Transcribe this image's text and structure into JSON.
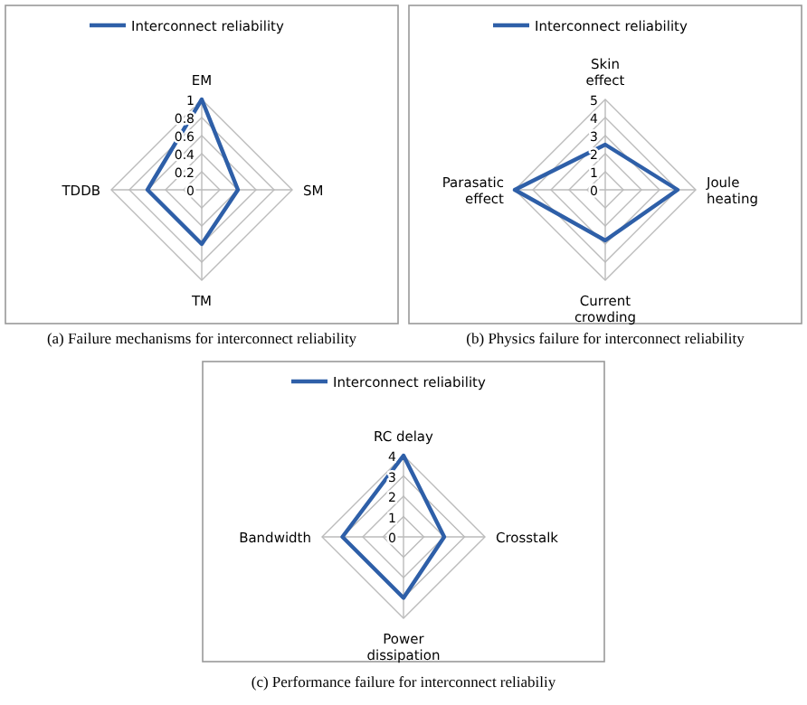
{
  "chart_data": [
    {
      "type": "radar",
      "title": "(a) Failure mechanisms for interconnect reliability",
      "categories": [
        "EM",
        "SM",
        "TM",
        "TDDB"
      ],
      "series": [
        {
          "name": "Interconnect reliability",
          "color": "#2e5fa8",
          "values": [
            1,
            0.4,
            0.6,
            0.6
          ]
        }
      ],
      "ylim": [
        0,
        1
      ],
      "yticks": [
        0,
        0.2,
        0.4,
        0.6,
        0.8,
        1
      ],
      "grid": true,
      "legend": "top"
    },
    {
      "type": "radar",
      "title": "(b) Physics failure for interconnect reliability",
      "categories": [
        "Skin effect",
        "Joule heating",
        "Current crowding",
        "Parasatic effect"
      ],
      "series": [
        {
          "name": "Interconnect reliability",
          "color": "#2e5fa8",
          "values": [
            2.5,
            4,
            2.8,
            5
          ]
        }
      ],
      "ylim": [
        0,
        5
      ],
      "yticks": [
        0,
        1,
        2,
        3,
        4,
        5
      ],
      "grid": true,
      "legend": "top"
    },
    {
      "type": "radar",
      "title": "(c) Performance failure for interconnect reliabiliy",
      "categories": [
        "RC delay",
        "Crosstalk",
        "Power dissipation",
        "Bandwidth"
      ],
      "series": [
        {
          "name": "Interconnect reliability",
          "color": "#2e5fa8",
          "values": [
            4,
            2,
            3,
            3
          ]
        }
      ],
      "ylim": [
        0,
        4
      ],
      "yticks": [
        0,
        1,
        2,
        3,
        4
      ],
      "grid": true,
      "legend": "top"
    }
  ]
}
